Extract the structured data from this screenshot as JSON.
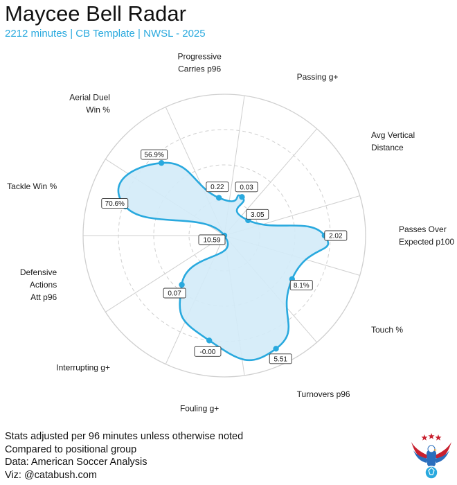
{
  "header": {
    "title": "Maycee Bell Radar",
    "subtitle": "2212 minutes | CB Template | NWSL - 2025"
  },
  "footer": {
    "lines": [
      "Stats adjusted per 96 minutes unless otherwise noted",
      "Compared to positional group",
      "Data: American Soccer Analysis",
      "Viz: @catabush.com"
    ]
  },
  "colors": {
    "accent": "#29a9de",
    "fill": "#d3ebf8",
    "grid": "#cfcfcf",
    "logo_red": "#c8202f",
    "logo_blue": "#2a6ebd"
  },
  "chart_data": {
    "type": "radar",
    "rlim": [
      0,
      1
    ],
    "grid_rings": [
      0.25,
      0.5,
      0.75
    ],
    "grid_style": "dashed",
    "axes": [
      {
        "label": [
          "Passes Over",
          "Expected p100"
        ],
        "value_label": "2.02",
        "value": 0.71
      },
      {
        "label": [
          "Avg Vertical",
          "Distance"
        ],
        "value_label": "3.05",
        "value": 0.2
      },
      {
        "label": [
          "Passing g+"
        ],
        "value_label": "0.03",
        "value": 0.3
      },
      {
        "label": [
          "Progressive",
          "Carries p96"
        ],
        "value_label": "0.22",
        "value": 0.27
      },
      {
        "label": [
          "Aerial Duel",
          "Win %"
        ],
        "value_label": "56.9%",
        "value": 0.68
      },
      {
        "label": [
          "Tackle Win %"
        ],
        "value_label": "70.6%",
        "value": 0.73
      },
      {
        "label": [
          "Defensive",
          "Actions",
          "Att p96"
        ],
        "value_label": "10.59",
        "value": 0.0
      },
      {
        "label": [
          "Interrupting g+"
        ],
        "value_label": "0.07",
        "value": 0.46
      },
      {
        "label": [
          "Fouling g+"
        ],
        "value_label": "-0.00",
        "value": 0.75
      },
      {
        "label": [
          "Turnovers p96"
        ],
        "value_label": "5.51",
        "value": 0.88
      },
      {
        "label": [
          "Touch %"
        ],
        "value_label": "8.1%",
        "value": 0.57
      }
    ]
  }
}
